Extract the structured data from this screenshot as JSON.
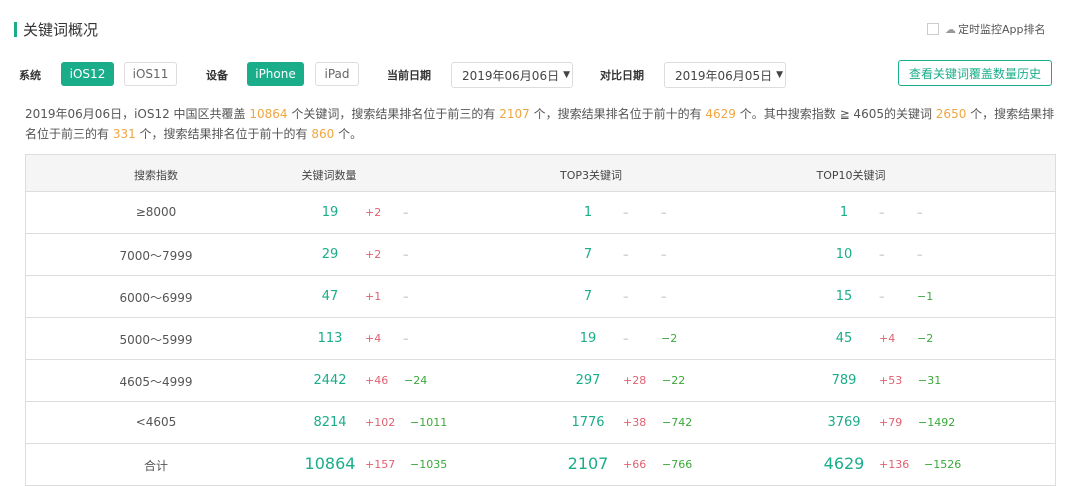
{
  "header": {
    "title": "关键词概况",
    "monitor_label": "定时监控App排名",
    "monitor_checked": false
  },
  "filters": {
    "system_label": "系统",
    "system_options": [
      "iOS12",
      "iOS11"
    ],
    "system_selected": "iOS12",
    "device_label": "设备",
    "device_options": [
      "iPhone",
      "iPad"
    ],
    "device_selected": "iPhone",
    "current_date_label": "当前日期",
    "current_date": "2019年06月06日",
    "compare_date_label": "对比日期",
    "compare_date": "2019年06月05日",
    "history_button": "查看关键词覆盖数量历史"
  },
  "summary": {
    "p1": "2019年06月06日，iOS12 中国区共覆盖 ",
    "v1": "10864",
    "p2": " 个关键词，搜索结果排名位于前三的有 ",
    "v2": "2107",
    "p3": " 个，搜索结果排名位于前十的有 ",
    "v3": "4629",
    "p4": " 个。其中搜索指数 ≧ 4605的关键词 ",
    "v4": "2650",
    "p5": " 个，搜索结果排名位于前三的有 ",
    "v5": "331",
    "p6": " 个，搜索结果排名位于前十的有 ",
    "v6": "860",
    "p7": " 个。"
  },
  "table": {
    "columns": [
      "搜索指数",
      "关键词数量",
      "TOP3关键词",
      "TOP10关键词"
    ],
    "rows": [
      {
        "range": "≥8000",
        "kw": [
          "19",
          "+2",
          "–"
        ],
        "top3": [
          "1",
          "–",
          "–"
        ],
        "top10": [
          "1",
          "–",
          "–"
        ]
      },
      {
        "range": "7000～7999",
        "kw": [
          "29",
          "+2",
          "–"
        ],
        "top3": [
          "7",
          "–",
          "–"
        ],
        "top10": [
          "10",
          "–",
          "–"
        ]
      },
      {
        "range": "6000～6999",
        "kw": [
          "47",
          "+1",
          "–"
        ],
        "top3": [
          "7",
          "–",
          "–"
        ],
        "top10": [
          "15",
          "–",
          "−1"
        ]
      },
      {
        "range": "5000～5999",
        "kw": [
          "113",
          "+4",
          "–"
        ],
        "top3": [
          "19",
          "–",
          "−2"
        ],
        "top10": [
          "45",
          "+4",
          "−2"
        ]
      },
      {
        "range": "4605～4999",
        "kw": [
          "2442",
          "+46",
          "−24"
        ],
        "top3": [
          "297",
          "+28",
          "−22"
        ],
        "top10": [
          "789",
          "+53",
          "−31"
        ]
      },
      {
        "range": "<4605",
        "kw": [
          "8214",
          "+102",
          "−1011"
        ],
        "top3": [
          "1776",
          "+38",
          "−742"
        ],
        "top10": [
          "3769",
          "+79",
          "−1492"
        ]
      },
      {
        "range": "合计",
        "kw": [
          "10864",
          "+157",
          "−1035"
        ],
        "top3": [
          "2107",
          "+66",
          "−766"
        ],
        "top10": [
          "4629",
          "+136",
          "−1526"
        ]
      }
    ]
  },
  "colors": {
    "accent": "#1aad8a",
    "highlight": "#f0a640",
    "increase": "#e06070",
    "decrease": "#3aa83a"
  }
}
